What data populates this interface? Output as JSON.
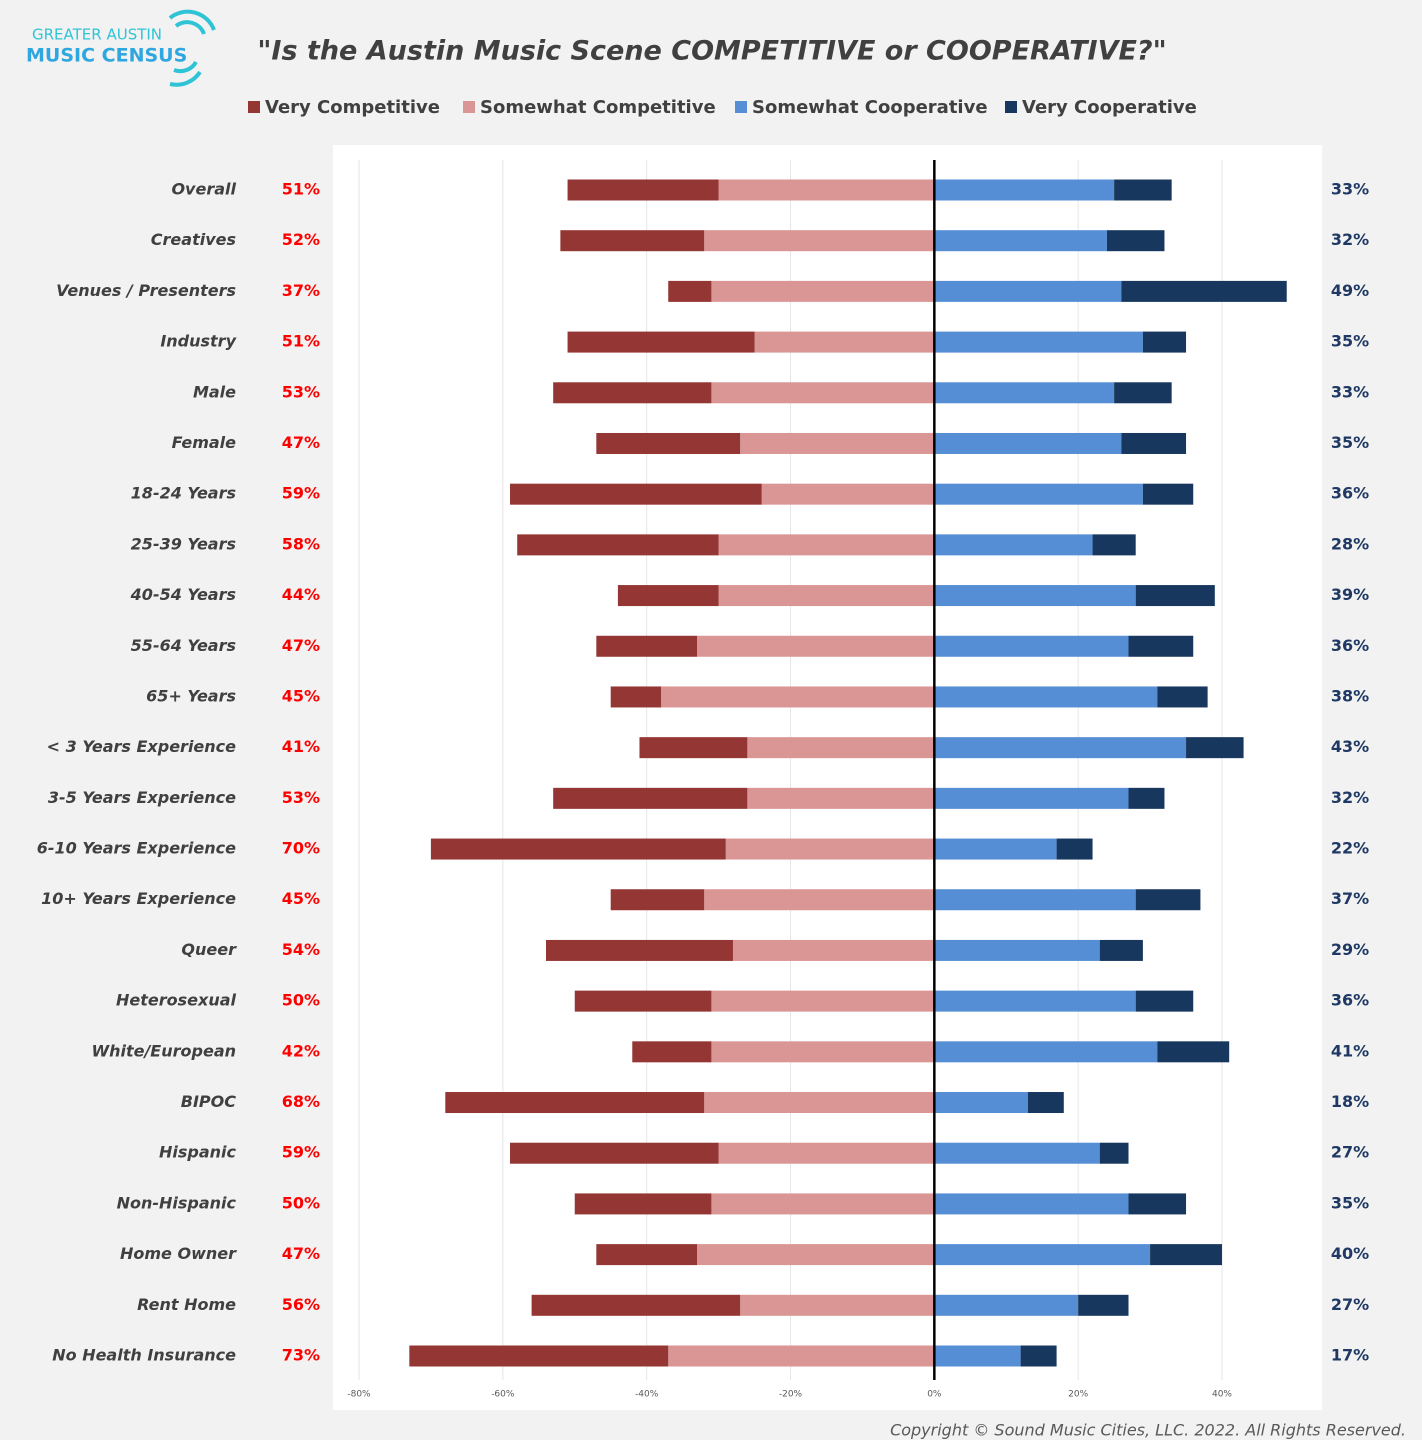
{
  "logo": {
    "line1": "GREATER AUSTIN",
    "line2": "MUSIC CENSUS"
  },
  "copyright": "Copyright © Sound Music Cities, LLC. 2022. All Rights Reserved.",
  "chart_data": {
    "type": "diverging_bar",
    "title": "\"Is the Austin Music Scene COMPETITIVE or COOPERATIVE?\"",
    "categories": [
      "Overall",
      "Creatives",
      "Venues / Presenters",
      "Industry",
      "Male",
      "Female",
      "18-24 Years",
      "25-39 Years",
      "40-54 Years",
      "55-64 Years",
      "65+ Years",
      "< 3 Years Experience",
      "3-5 Years Experience",
      "6-10 Years Experience",
      "10+ Years Experience",
      "Queer",
      "Heterosexual",
      "White/European",
      "BIPOC",
      "Hispanic",
      "Non-Hispanic",
      "Home Owner",
      "Rent Home",
      "No Health Insurance"
    ],
    "series": [
      {
        "name": "Very Competitive",
        "color": "#943634",
        "values": [
          -21,
          -20,
          -6,
          -26,
          -22,
          -20,
          -35,
          -28,
          -14,
          -14,
          -7,
          -15,
          -27,
          -41,
          -13,
          -26,
          -19,
          -11,
          -36,
          -29,
          -19,
          -14,
          -29,
          -36
        ]
      },
      {
        "name": "Somewhat Competitive",
        "color": "#d99694",
        "values": [
          -30,
          -32,
          -31,
          -25,
          -31,
          -27,
          -24,
          -30,
          -30,
          -33,
          -38,
          -26,
          -26,
          -29,
          -32,
          -28,
          -31,
          -31,
          -32,
          -30,
          -31,
          -33,
          -27,
          -37
        ]
      },
      {
        "name": "Somewhat Cooperative",
        "color": "#558ed5",
        "values": [
          25,
          24,
          26,
          29,
          25,
          26,
          29,
          22,
          28,
          27,
          31,
          35,
          27,
          17,
          28,
          23,
          28,
          31,
          13,
          23,
          27,
          30,
          20,
          12
        ]
      },
      {
        "name": "Very Cooperative",
        "color": "#17375e",
        "values": [
          8,
          8,
          23,
          6,
          8,
          9,
          7,
          6,
          11,
          9,
          7,
          8,
          5,
          5,
          9,
          6,
          8,
          10,
          5,
          4,
          8,
          10,
          7,
          5
        ]
      }
    ],
    "totals": {
      "competitive": {
        "color": "#ff0000",
        "values": [
          51,
          52,
          37,
          51,
          53,
          47,
          59,
          58,
          44,
          47,
          45,
          41,
          53,
          70,
          45,
          54,
          50,
          42,
          68,
          59,
          50,
          47,
          56,
          73
        ],
        "value_labels": [
          "51%",
          "52%",
          "37%",
          "51%",
          "53%",
          "47%",
          "59%",
          "58%",
          "44%",
          "47%",
          "45%",
          "41%",
          "53%",
          "70%",
          "45%",
          "54%",
          "50%",
          "42%",
          "68%",
          "59%",
          "50%",
          "47%",
          "56%",
          "73%"
        ]
      },
      "cooperative": {
        "color": "#1f3864",
        "values": [
          33,
          32,
          49,
          35,
          33,
          35,
          36,
          28,
          39,
          36,
          38,
          43,
          32,
          22,
          37,
          29,
          36,
          41,
          18,
          27,
          35,
          40,
          27,
          17
        ],
        "value_labels": [
          "33%",
          "32%",
          "49%",
          "35%",
          "33%",
          "35%",
          "36%",
          "28%",
          "39%",
          "36%",
          "38%",
          "43%",
          "32%",
          "22%",
          "37%",
          "29%",
          "36%",
          "41%",
          "18%",
          "27%",
          "35%",
          "40%",
          "27%",
          "17%"
        ]
      }
    },
    "xlim": [
      -80,
      50
    ],
    "xticks": [
      {
        "value": -80,
        "label": "-80%"
      },
      {
        "value": -60,
        "label": "-60%"
      },
      {
        "value": -40,
        "label": "-40%"
      },
      {
        "value": -20,
        "label": "-20%"
      },
      {
        "value": 0,
        "label": "0%"
      },
      {
        "value": 20,
        "label": "20%"
      },
      {
        "value": 40,
        "label": "40%"
      }
    ],
    "grid": true,
    "legend": "top"
  }
}
